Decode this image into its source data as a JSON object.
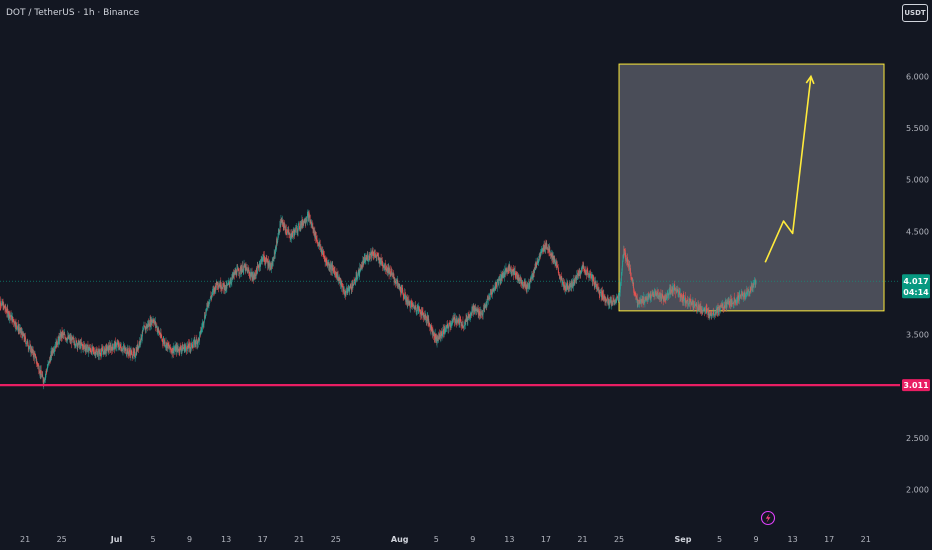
{
  "header": {
    "title": "DOT / TetherUS · 1h · Binance",
    "currency": "USDT"
  },
  "colors": {
    "background": "#131722",
    "up": "#26a69a",
    "down": "#ef5350",
    "support_line": "#e91e63",
    "current_price": "#089981",
    "annotation": "#ffeb3b",
    "box_fill": "#5d606b",
    "axis_text": "#b2b5be"
  },
  "icons": {
    "bottom": "lightning-icon"
  },
  "chart_data": {
    "type": "candlestick",
    "symbol": "DOT / TetherUS",
    "interval": "1h",
    "exchange": "Binance",
    "y_ticks": [
      "2.000",
      "2.500",
      "3.000",
      "3.500",
      "4.000",
      "4.500",
      "5.000",
      "5.500",
      "6.000"
    ],
    "x_ticks": [
      {
        "label": "21",
        "date": "2024-06-21"
      },
      {
        "label": "25",
        "date": "2024-06-25"
      },
      {
        "label": "Jul",
        "date": "2024-07-01",
        "month": true
      },
      {
        "label": "5",
        "date": "2024-07-05"
      },
      {
        "label": "9",
        "date": "2024-07-09"
      },
      {
        "label": "13",
        "date": "2024-07-13"
      },
      {
        "label": "17",
        "date": "2024-07-17"
      },
      {
        "label": "21",
        "date": "2024-07-21"
      },
      {
        "label": "25",
        "date": "2024-07-25"
      },
      {
        "label": "Aug",
        "date": "2024-08-01",
        "month": true
      },
      {
        "label": "5",
        "date": "2024-08-05"
      },
      {
        "label": "9",
        "date": "2024-08-09"
      },
      {
        "label": "13",
        "date": "2024-08-13"
      },
      {
        "label": "17",
        "date": "2024-08-17"
      },
      {
        "label": "21",
        "date": "2024-08-21"
      },
      {
        "label": "25",
        "date": "2024-08-25"
      },
      {
        "label": "Sep",
        "date": "2024-09-01",
        "month": true
      },
      {
        "label": "5",
        "date": "2024-09-05"
      },
      {
        "label": "9",
        "date": "2024-09-09"
      },
      {
        "label": "13",
        "date": "2024-09-13"
      },
      {
        "label": "17",
        "date": "2024-09-17"
      },
      {
        "label": "21",
        "date": "2024-09-21"
      }
    ],
    "price_path": [
      [
        "2024-06-18",
        3.85
      ],
      [
        "2024-06-20",
        3.6
      ],
      [
        "2024-06-21",
        3.45
      ],
      [
        "2024-06-22",
        3.3
      ],
      [
        "2024-06-23",
        3.05
      ],
      [
        "2024-06-24",
        3.35
      ],
      [
        "2024-06-25",
        3.5
      ],
      [
        "2024-06-27",
        3.4
      ],
      [
        "2024-06-29",
        3.32
      ],
      [
        "2024-07-01",
        3.4
      ],
      [
        "2024-07-03",
        3.3
      ],
      [
        "2024-07-04",
        3.55
      ],
      [
        "2024-07-05",
        3.65
      ],
      [
        "2024-07-06",
        3.45
      ],
      [
        "2024-07-07",
        3.35
      ],
      [
        "2024-07-09",
        3.38
      ],
      [
        "2024-07-10",
        3.45
      ],
      [
        "2024-07-11",
        3.8
      ],
      [
        "2024-07-12",
        4.0
      ],
      [
        "2024-07-13",
        3.95
      ],
      [
        "2024-07-14",
        4.1
      ],
      [
        "2024-07-15",
        4.15
      ],
      [
        "2024-07-16",
        4.05
      ],
      [
        "2024-07-17",
        4.25
      ],
      [
        "2024-07-18",
        4.15
      ],
      [
        "2024-07-19",
        4.6
      ],
      [
        "2024-07-20",
        4.45
      ],
      [
        "2024-07-21",
        4.55
      ],
      [
        "2024-07-22",
        4.65
      ],
      [
        "2024-07-23",
        4.4
      ],
      [
        "2024-07-24",
        4.2
      ],
      [
        "2024-07-25",
        4.1
      ],
      [
        "2024-07-26",
        3.9
      ],
      [
        "2024-07-27",
        4.0
      ],
      [
        "2024-07-28",
        4.2
      ],
      [
        "2024-07-29",
        4.3
      ],
      [
        "2024-07-30",
        4.2
      ],
      [
        "2024-07-31",
        4.1
      ],
      [
        "2024-08-01",
        3.95
      ],
      [
        "2024-08-02",
        3.8
      ],
      [
        "2024-08-03",
        3.75
      ],
      [
        "2024-08-04",
        3.65
      ],
      [
        "2024-08-05",
        3.45
      ],
      [
        "2024-08-06",
        3.55
      ],
      [
        "2024-08-07",
        3.65
      ],
      [
        "2024-08-08",
        3.6
      ],
      [
        "2024-08-09",
        3.75
      ],
      [
        "2024-08-10",
        3.7
      ],
      [
        "2024-08-11",
        3.9
      ],
      [
        "2024-08-12",
        4.05
      ],
      [
        "2024-08-13",
        4.15
      ],
      [
        "2024-08-14",
        4.05
      ],
      [
        "2024-08-15",
        3.95
      ],
      [
        "2024-08-16",
        4.2
      ],
      [
        "2024-08-17",
        4.38
      ],
      [
        "2024-08-18",
        4.2
      ],
      [
        "2024-08-19",
        3.95
      ],
      [
        "2024-08-20",
        4.0
      ],
      [
        "2024-08-21",
        4.15
      ],
      [
        "2024-08-22",
        4.05
      ],
      [
        "2024-08-23",
        3.9
      ],
      [
        "2024-08-24",
        3.8
      ],
      [
        "2024-08-25",
        3.85
      ],
      [
        "2024-08-25T12",
        4.3
      ],
      [
        "2024-08-26",
        4.2
      ],
      [
        "2024-08-27",
        3.8
      ],
      [
        "2024-08-28",
        3.85
      ],
      [
        "2024-08-29",
        3.9
      ],
      [
        "2024-08-30",
        3.85
      ],
      [
        "2024-08-31",
        3.95
      ],
      [
        "2024-09-01",
        3.85
      ],
      [
        "2024-09-02",
        3.8
      ],
      [
        "2024-09-03",
        3.75
      ],
      [
        "2024-09-04",
        3.7
      ],
      [
        "2024-09-05",
        3.75
      ],
      [
        "2024-09-06",
        3.8
      ],
      [
        "2024-09-07",
        3.85
      ],
      [
        "2024-09-08",
        3.9
      ],
      [
        "2024-09-09",
        4.017
      ]
    ],
    "support_level": {
      "value": 3.011,
      "label": "3.011"
    },
    "current_price": {
      "value": 4.017,
      "label": "4.017",
      "countdown": "04:14"
    },
    "target_box": {
      "x0": "2024-08-25",
      "x1": "2024-09-23",
      "y0": 3.73,
      "y1": 6.12
    },
    "projection_arrow": [
      [
        "2024-09-10",
        4.2
      ],
      [
        "2024-09-12",
        4.6
      ],
      [
        "2024-09-13",
        4.48
      ],
      [
        "2024-09-15",
        6.0
      ]
    ],
    "y_range": [
      1.85,
      6.45
    ],
    "x_range": [
      "2024-06-18T06",
      "2024-09-24T18"
    ]
  }
}
